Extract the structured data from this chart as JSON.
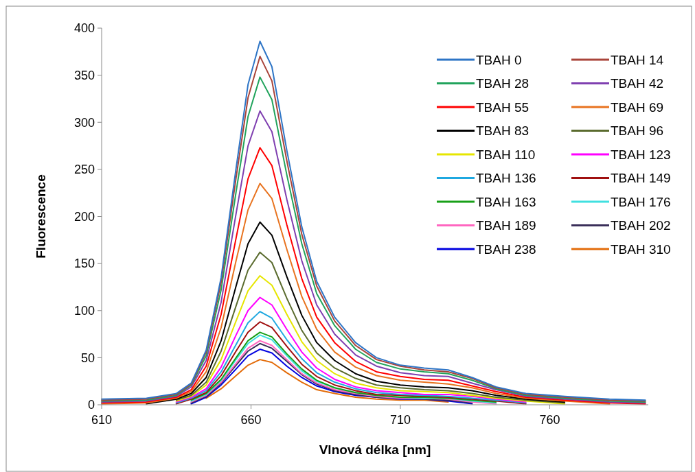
{
  "chart_data": {
    "type": "line",
    "xlabel": "Vlnová délka [nm]",
    "ylabel": "Fluorescence",
    "x": [
      610,
      625,
      635,
      640,
      645,
      650,
      655,
      659,
      663,
      667,
      672,
      677,
      682,
      688,
      695,
      702,
      710,
      718,
      726,
      734,
      742,
      752,
      765,
      780,
      792
    ],
    "xlim": [
      610,
      793
    ],
    "xticks": [
      610,
      660,
      710,
      760
    ],
    "ylim": [
      0,
      400
    ],
    "yticks": [
      0,
      50,
      100,
      150,
      200,
      250,
      300,
      350,
      400
    ],
    "grid": false,
    "legend": "top right",
    "marker": "none",
    "line_style": "solid",
    "series": [
      {
        "name": "TBAH 0",
        "color": "#2e75c6",
        "values": [
          6,
          7,
          12,
          23,
          58,
          135,
          251,
          340,
          386,
          359,
          270,
          189,
          131,
          93,
          66,
          50,
          42,
          39,
          37,
          29,
          19,
          12,
          9,
          6,
          5
        ]
      },
      {
        "name": "TBAH 14",
        "color": "#a9443a",
        "values": [
          5,
          6,
          11,
          22,
          56,
          130,
          241,
          326,
          370,
          344,
          259,
          181,
          126,
          89,
          63,
          48,
          41,
          37,
          35,
          28,
          18,
          11,
          8,
          5,
          4
        ]
      },
      {
        "name": "TBAH 28",
        "color": "#21a35c",
        "values": [
          4,
          5,
          10,
          21,
          52,
          122,
          226,
          306,
          348,
          324,
          244,
          171,
          118,
          84,
          59,
          45,
          38,
          35,
          33,
          26,
          17,
          10,
          7,
          4,
          3
        ]
      },
      {
        "name": "TBAH 42",
        "color": "#7f3fb0",
        "values": [
          3,
          4,
          9,
          19,
          47,
          109,
          203,
          275,
          312,
          290,
          218,
          153,
          106,
          75,
          53,
          41,
          34,
          31,
          30,
          23,
          16,
          9,
          6,
          3,
          2
        ]
      },
      {
        "name": "TBAH 55",
        "color": "#ff0000",
        "values": [
          2,
          3,
          8,
          16,
          41,
          96,
          177,
          240,
          273,
          254,
          191,
          134,
          93,
          66,
          46,
          35,
          30,
          27,
          26,
          20,
          14,
          8,
          5,
          2,
          1
        ]
      },
      {
        "name": "TBAH 69",
        "color": "#e8731f",
        "values": [
          1,
          2,
          7,
          14,
          35,
          82,
          153,
          207,
          235,
          219,
          165,
          115,
          80,
          56,
          40,
          31,
          26,
          24,
          22,
          18,
          12,
          7,
          4,
          1,
          null
        ]
      },
      {
        "name": "TBAH 83",
        "color": "#000000",
        "values": [
          null,
          1,
          6,
          12,
          29,
          68,
          126,
          171,
          194,
          180,
          136,
          95,
          66,
          47,
          33,
          25,
          21,
          19,
          18,
          15,
          10,
          6,
          3,
          null,
          null
        ]
      },
      {
        "name": "TBAH 96",
        "color": "#5a6b2e",
        "values": [
          null,
          null,
          5,
          10,
          24,
          57,
          105,
          143,
          162,
          151,
          113,
          79,
          55,
          39,
          28,
          21,
          18,
          16,
          15,
          12,
          8,
          5,
          2,
          null,
          null
        ]
      },
      {
        "name": "TBAH 110",
        "color": "#e6e600",
        "values": [
          null,
          null,
          4,
          9,
          21,
          48,
          89,
          121,
          137,
          127,
          96,
          67,
          47,
          33,
          23,
          18,
          15,
          14,
          13,
          10,
          7,
          4,
          1,
          null,
          null
        ]
      },
      {
        "name": "TBAH 123",
        "color": "#ff00ff",
        "values": [
          null,
          null,
          3,
          8,
          17,
          40,
          74,
          100,
          114,
          106,
          80,
          56,
          39,
          27,
          19,
          15,
          13,
          11,
          11,
          9,
          6,
          3,
          null,
          null,
          null
        ]
      },
      {
        "name": "TBAH 136",
        "color": "#1fa8e0",
        "values": [
          null,
          null,
          2,
          7,
          15,
          35,
          64,
          87,
          99,
          92,
          69,
          49,
          34,
          24,
          17,
          13,
          11,
          10,
          9,
          7,
          5,
          2,
          null,
          null,
          null
        ]
      },
      {
        "name": "TBAH 149",
        "color": "#a01010",
        "values": [
          null,
          null,
          1,
          6,
          13,
          31,
          57,
          77,
          88,
          82,
          62,
          43,
          30,
          21,
          15,
          11,
          10,
          9,
          8,
          6,
          4,
          1,
          null,
          null,
          null
        ]
      },
      {
        "name": "TBAH 163",
        "color": "#18a018",
        "values": [
          null,
          null,
          null,
          5,
          12,
          27,
          50,
          68,
          77,
          72,
          54,
          38,
          26,
          18,
          13,
          10,
          8,
          8,
          7,
          5,
          3,
          null,
          null,
          null,
          null
        ]
      },
      {
        "name": "TBAH 176",
        "color": "#40e0e0",
        "values": [
          null,
          null,
          null,
          4,
          11,
          26,
          48,
          65,
          74,
          69,
          52,
          36,
          25,
          18,
          13,
          10,
          8,
          7,
          7,
          4,
          2,
          null,
          null,
          null,
          null
        ]
      },
      {
        "name": "TBAH 189",
        "color": "#ff66c0",
        "values": [
          null,
          null,
          null,
          3,
          10,
          24,
          44,
          60,
          68,
          63,
          48,
          33,
          23,
          16,
          12,
          9,
          7,
          7,
          6,
          3,
          1,
          null,
          null,
          null,
          null
        ]
      },
      {
        "name": "TBAH 202",
        "color": "#3a2f5a",
        "values": [
          null,
          null,
          null,
          2,
          9,
          23,
          42,
          57,
          65,
          60,
          46,
          32,
          22,
          15,
          11,
          8,
          7,
          6,
          5,
          2,
          null,
          null,
          null,
          null,
          null
        ]
      },
      {
        "name": "TBAH 238",
        "color": "#0000e0",
        "values": [
          null,
          null,
          null,
          1,
          8,
          21,
          38,
          52,
          59,
          55,
          41,
          29,
          20,
          14,
          10,
          8,
          6,
          6,
          4,
          1,
          null,
          null,
          null,
          null,
          null
        ]
      },
      {
        "name": "TBAH 310",
        "color": "#e36c0a",
        "values": [
          null,
          null,
          null,
          null,
          7,
          17,
          31,
          42,
          48,
          45,
          34,
          24,
          16,
          12,
          8,
          6,
          5,
          5,
          3,
          null,
          null,
          null,
          null,
          null,
          null
        ]
      }
    ]
  }
}
